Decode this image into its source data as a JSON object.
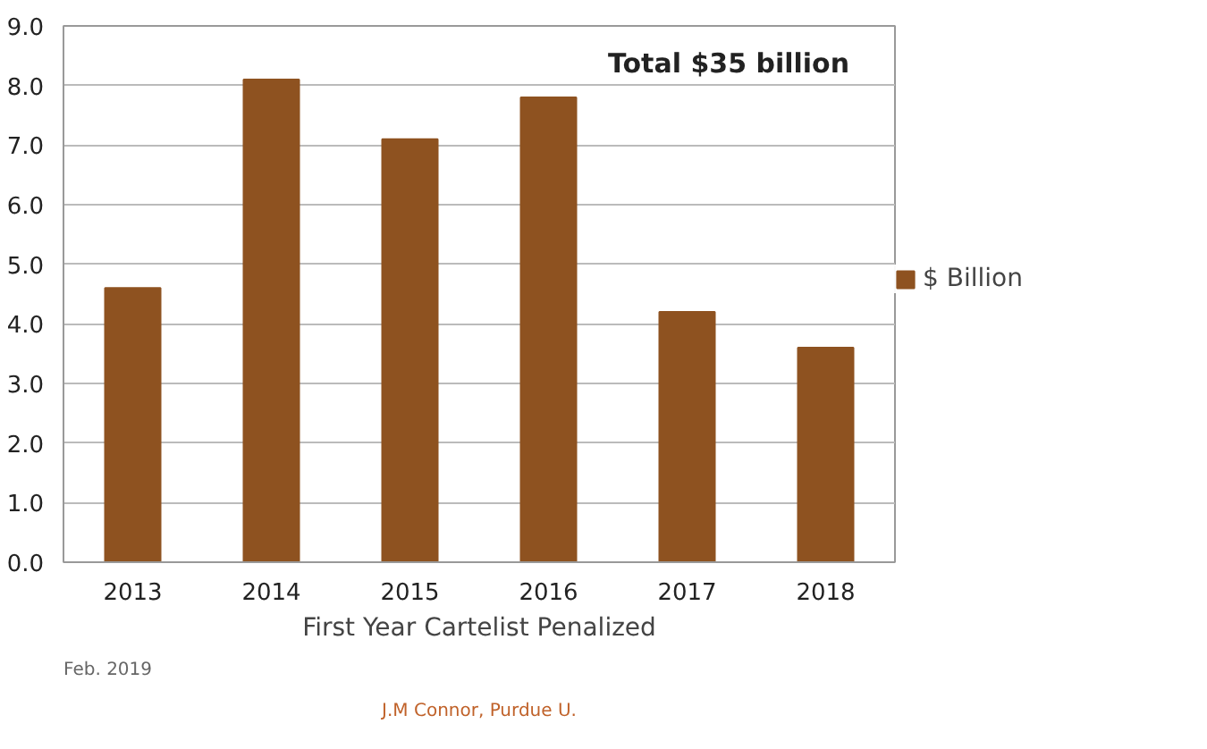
{
  "chart_data": {
    "type": "bar",
    "categories": [
      "2013",
      "2014",
      "2015",
      "2016",
      "2017",
      "2018"
    ],
    "series": [
      {
        "name": "$ Billion",
        "color": "#8e5220",
        "values": [
          4.6,
          8.1,
          7.1,
          7.8,
          4.2,
          3.6
        ]
      }
    ],
    "xlabel": "First Year Cartelist Penalized",
    "ylim": [
      0,
      9
    ],
    "yticks": [
      {
        "value": 0,
        "label": "0.0"
      },
      {
        "value": 1,
        "label": "1.0"
      },
      {
        "value": 2,
        "label": "2.0"
      },
      {
        "value": 3,
        "label": "3.0"
      },
      {
        "value": 4,
        "label": "4.0"
      },
      {
        "value": 5,
        "label": "5.0"
      },
      {
        "value": 6,
        "label": "6.0"
      },
      {
        "value": 7,
        "label": "7.0"
      },
      {
        "value": 8,
        "label": "8.0"
      },
      {
        "value": 9,
        "label": "9.0"
      }
    ],
    "grid": "y",
    "legend": "right",
    "annotations": [
      "Total $35 billion",
      "Feb. 2019",
      "J.M Connor, Purdue U."
    ]
  }
}
